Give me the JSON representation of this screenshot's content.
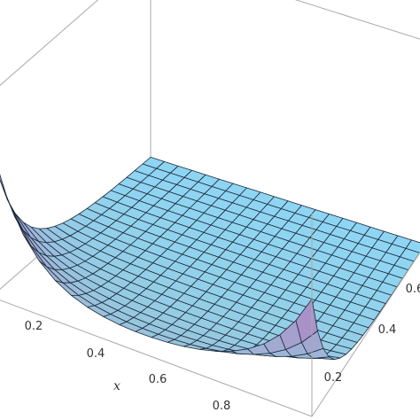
{
  "chart_data": {
    "type": "surface3d",
    "title": "",
    "xlabel": "x",
    "ylabel": "",
    "zlabel": "",
    "x_ticks": [
      "0.2",
      "0.4",
      "0.6",
      "0.8"
    ],
    "y_ticks": [
      "0.2",
      "0.4",
      "0.6"
    ],
    "y_tick_partial": "0.6",
    "xlim": [
      0,
      1
    ],
    "ylim": [
      0,
      1
    ],
    "mesh_lines": 20,
    "box": true,
    "surface_color_high": "#a78fd8",
    "surface_color_low": "#8ed6f5",
    "mesh_color": "#1a2a3a",
    "box_color": "#aaaaaa"
  }
}
